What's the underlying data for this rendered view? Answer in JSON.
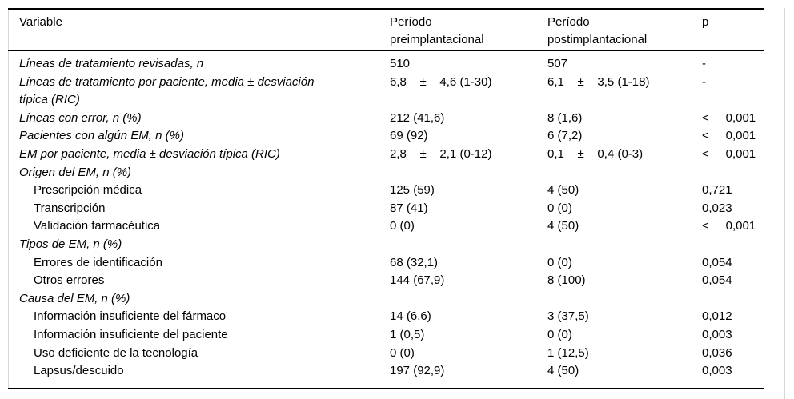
{
  "table": {
    "headers": [
      "Variable",
      "Período\npreimplantacional",
      "Período\npostimplantacional",
      "p"
    ],
    "rows": [
      {
        "variable": "Líneas de tratamiento revisadas, n",
        "indent": false,
        "pre": "510",
        "post": "507",
        "p": "-"
      },
      {
        "variable": "Líneas de tratamiento por paciente, media ± desviación\ntípica (RIC)",
        "indent": false,
        "pre": "6,8    ±    4,6 (1-30)",
        "post": "6,1    ±    3,5 (1-18)",
        "p": "-"
      },
      {
        "variable": "Líneas con error, n (%)",
        "indent": false,
        "pre": "212 (41,6)",
        "post": "8 (1,6)",
        "p": "<     0,001"
      },
      {
        "variable": "Pacientes con algún EM, n (%)",
        "indent": false,
        "pre": "69 (92)",
        "post": "6 (7,2)",
        "p": "<     0,001"
      },
      {
        "variable": "EM por paciente, media ± desviación típica (RIC)",
        "indent": false,
        "pre": "2,8    ±    2,1 (0-12)",
        "post": "0,1    ±    0,4 (0-3)",
        "p": "<     0,001"
      },
      {
        "variable": "Origen del EM, n (%)",
        "indent": false,
        "pre": "",
        "post": "",
        "p": ""
      },
      {
        "variable": "Prescripción médica",
        "indent": true,
        "pre": "125 (59)",
        "post": "4 (50)",
        "p": "0,721"
      },
      {
        "variable": "Transcripción",
        "indent": true,
        "pre": "87 (41)",
        "post": "0 (0)",
        "p": "0,023"
      },
      {
        "variable": "Validación farmacéutica",
        "indent": true,
        "pre": "0 (0)",
        "post": "4 (50)",
        "p": "<     0,001"
      },
      {
        "variable": "Tipos de EM, n (%)",
        "indent": false,
        "pre": "",
        "post": "",
        "p": ""
      },
      {
        "variable": "Errores de identificación",
        "indent": true,
        "pre": "68 (32,1)",
        "post": "0 (0)",
        "p": "0,054"
      },
      {
        "variable": "Otros errores",
        "indent": true,
        "pre": "144 (67,9)",
        "post": "8 (100)",
        "p": "0,054"
      },
      {
        "variable": "Causa del EM, n (%)",
        "indent": false,
        "pre": "",
        "post": "",
        "p": ""
      },
      {
        "variable": "Información insuficiente del fármaco",
        "indent": true,
        "pre": "14 (6,6)",
        "post": "3 (37,5)",
        "p": "0,012"
      },
      {
        "variable": "Información insuficiente del paciente",
        "indent": true,
        "pre": "1 (0,5)",
        "post": "0 (0)",
        "p": "0,003"
      },
      {
        "variable": "Uso deficiente de la tecnología",
        "indent": true,
        "pre": "0 (0)",
        "post": "1 (12,5)",
        "p": "0,036"
      },
      {
        "variable": "Lapsus/descuido",
        "indent": true,
        "pre": "197 (92,9)",
        "post": "4 (50)",
        "p": "0,003"
      }
    ]
  }
}
